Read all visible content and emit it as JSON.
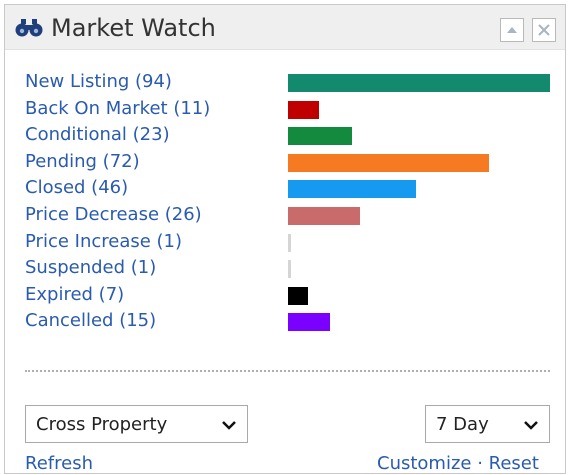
{
  "header": {
    "title": "Market Watch",
    "icon": "binoculars-icon"
  },
  "status_rows": [
    {
      "label": "New Listing (94)",
      "count": 94,
      "color": "#138a6d"
    },
    {
      "label": "Back On Market (11)",
      "count": 11,
      "color": "#c00000"
    },
    {
      "label": "Conditional (23)",
      "count": 23,
      "color": "#138a3d"
    },
    {
      "label": "Pending (72)",
      "count": 72,
      "color": "#f57a22"
    },
    {
      "label": "Closed (46)",
      "count": 46,
      "color": "#169af0"
    },
    {
      "label": "Price Decrease (26)",
      "count": 26,
      "color": "#c96b6b"
    },
    {
      "label": "Price Increase (1)",
      "count": 1,
      "color": "#d5d5d5"
    },
    {
      "label": "Suspended (1)",
      "count": 1,
      "color": "#d5d5d5"
    },
    {
      "label": "Expired (7)",
      "count": 7,
      "color": "#000000"
    },
    {
      "label": "Cancelled (15)",
      "count": 15,
      "color": "#7a00ff"
    }
  ],
  "filters": {
    "property_type": "Cross Property",
    "date_range": "7 Day"
  },
  "footer_links": {
    "left": "Refresh",
    "right": "Customize · Reset"
  }
}
